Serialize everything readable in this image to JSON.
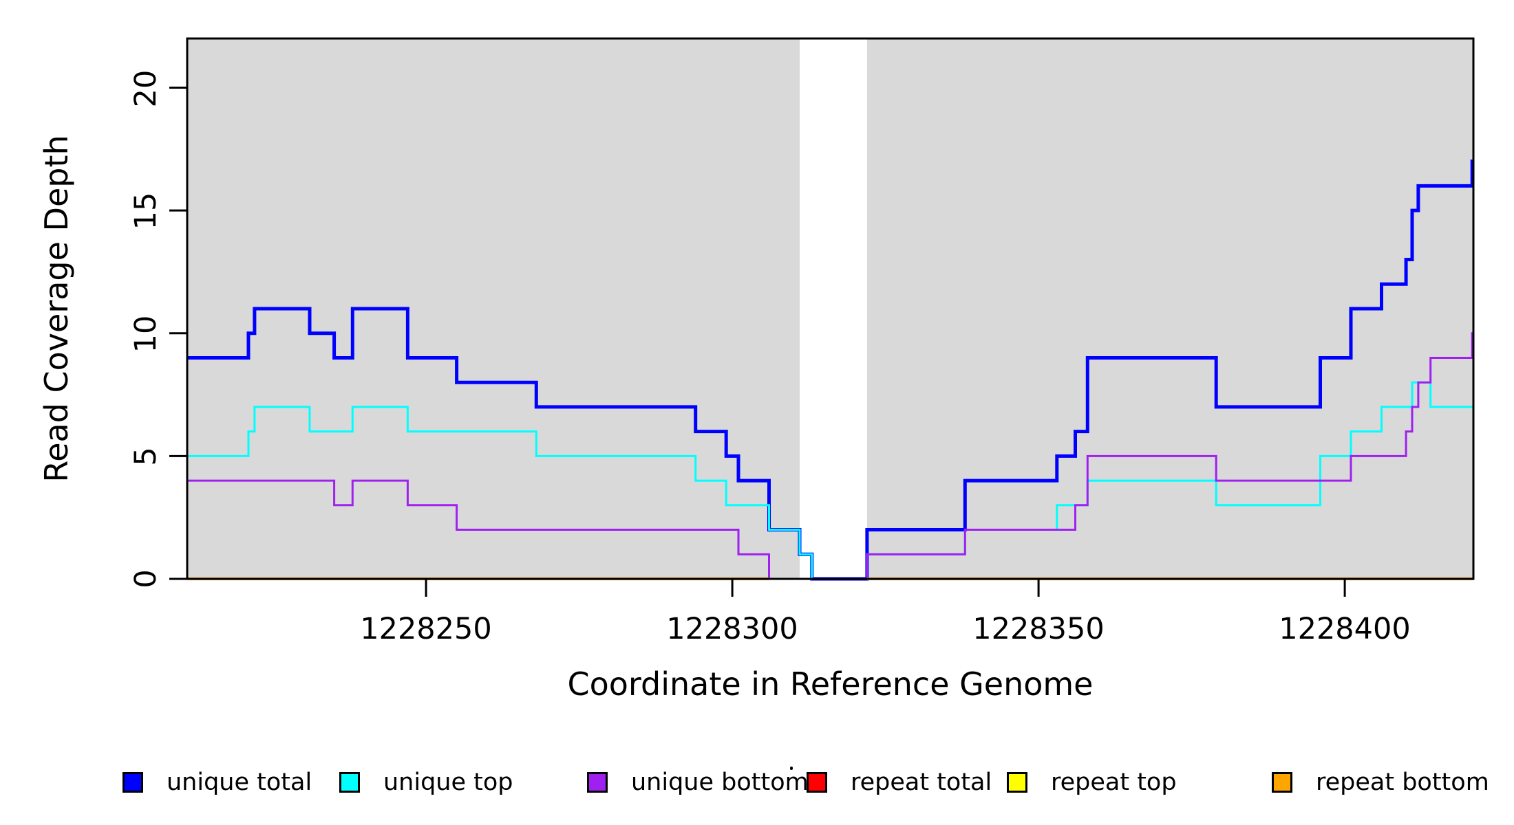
{
  "chart_data": {
    "type": "step-line",
    "title": "",
    "xlabel": "Coordinate in Reference Genome",
    "ylabel": "Read Coverage Depth",
    "xlim": [
      1228211,
      1228421
    ],
    "ylim": [
      0,
      22
    ],
    "x_ticks": [
      1228250,
      1228300,
      1228350,
      1228400
    ],
    "x_tick_labels": [
      "1228250",
      "1228300",
      "1228350",
      "1228400"
    ],
    "y_ticks": [
      0,
      5,
      10,
      15,
      20
    ],
    "y_tick_labels": [
      "0",
      "5",
      "10",
      "15",
      "20"
    ],
    "grid": false,
    "plot_background": "#d9d9d9",
    "no_data_band": {
      "x_start": 1228311,
      "x_end": 1228322,
      "color": "#ffffff"
    },
    "axis_color": "#000000",
    "legend_position": "bottom",
    "series": [
      {
        "name": "unique total",
        "color": "#0000ff",
        "line_width": 5,
        "steps": [
          [
            1228211,
            9
          ],
          [
            1228221,
            10
          ],
          [
            1228222,
            11
          ],
          [
            1228231,
            10
          ],
          [
            1228235,
            9
          ],
          [
            1228238,
            11
          ],
          [
            1228247,
            9
          ],
          [
            1228255,
            8
          ],
          [
            1228268,
            7
          ],
          [
            1228294,
            6
          ],
          [
            1228299,
            5
          ],
          [
            1228301,
            4
          ],
          [
            1228306,
            2
          ],
          [
            1228311,
            1
          ],
          [
            1228313,
            0
          ],
          [
            1228322,
            2
          ],
          [
            1228338,
            4
          ],
          [
            1228353,
            5
          ],
          [
            1228356,
            6
          ],
          [
            1228358,
            9
          ],
          [
            1228379,
            7
          ],
          [
            1228396,
            9
          ],
          [
            1228401,
            11
          ],
          [
            1228406,
            12
          ],
          [
            1228410,
            13
          ],
          [
            1228411,
            15
          ],
          [
            1228412,
            16
          ],
          [
            1228420.8,
            17
          ]
        ]
      },
      {
        "name": "unique top",
        "color": "#00ffff",
        "line_width": 3,
        "steps": [
          [
            1228211,
            5
          ],
          [
            1228221,
            6
          ],
          [
            1228222,
            7
          ],
          [
            1228231,
            6
          ],
          [
            1228238,
            7
          ],
          [
            1228247,
            6
          ],
          [
            1228268,
            5
          ],
          [
            1228294,
            4
          ],
          [
            1228299,
            3
          ],
          [
            1228306,
            2
          ],
          [
            1228311,
            1
          ],
          [
            1228313,
            0
          ],
          [
            1228322,
            1
          ],
          [
            1228338,
            2
          ],
          [
            1228353,
            3
          ],
          [
            1228358,
            4
          ],
          [
            1228379,
            3
          ],
          [
            1228396,
            5
          ],
          [
            1228401,
            6
          ],
          [
            1228406,
            7
          ],
          [
            1228411,
            8
          ],
          [
            1228414,
            7
          ]
        ]
      },
      {
        "name": "unique bottom",
        "color": "#a020f0",
        "line_width": 3,
        "steps": [
          [
            1228211,
            4
          ],
          [
            1228235,
            3
          ],
          [
            1228238,
            4
          ],
          [
            1228247,
            3
          ],
          [
            1228255,
            2
          ],
          [
            1228301,
            1
          ],
          [
            1228306,
            0
          ],
          [
            1228322,
            1
          ],
          [
            1228338,
            2
          ],
          [
            1228356,
            3
          ],
          [
            1228358,
            5
          ],
          [
            1228379,
            4
          ],
          [
            1228401,
            5
          ],
          [
            1228410,
            6
          ],
          [
            1228411,
            7
          ],
          [
            1228412,
            8
          ],
          [
            1228414,
            9
          ],
          [
            1228420.8,
            10
          ]
        ]
      },
      {
        "name": "repeat total",
        "color": "#ff0000",
        "line_width": 3,
        "steps": [
          [
            1228211,
            0
          ]
        ],
        "gap": [
          1228306,
          1228322
        ]
      },
      {
        "name": "repeat top",
        "color": "#ffff00",
        "line_width": 3,
        "steps": [
          [
            1228211,
            0
          ]
        ],
        "gap": [
          1228306,
          1228322
        ]
      },
      {
        "name": "repeat bottom",
        "color": "#ffa500",
        "line_width": 4,
        "steps": [
          [
            1228211,
            0
          ]
        ],
        "gap": [
          1228306,
          1228322
        ]
      }
    ]
  }
}
